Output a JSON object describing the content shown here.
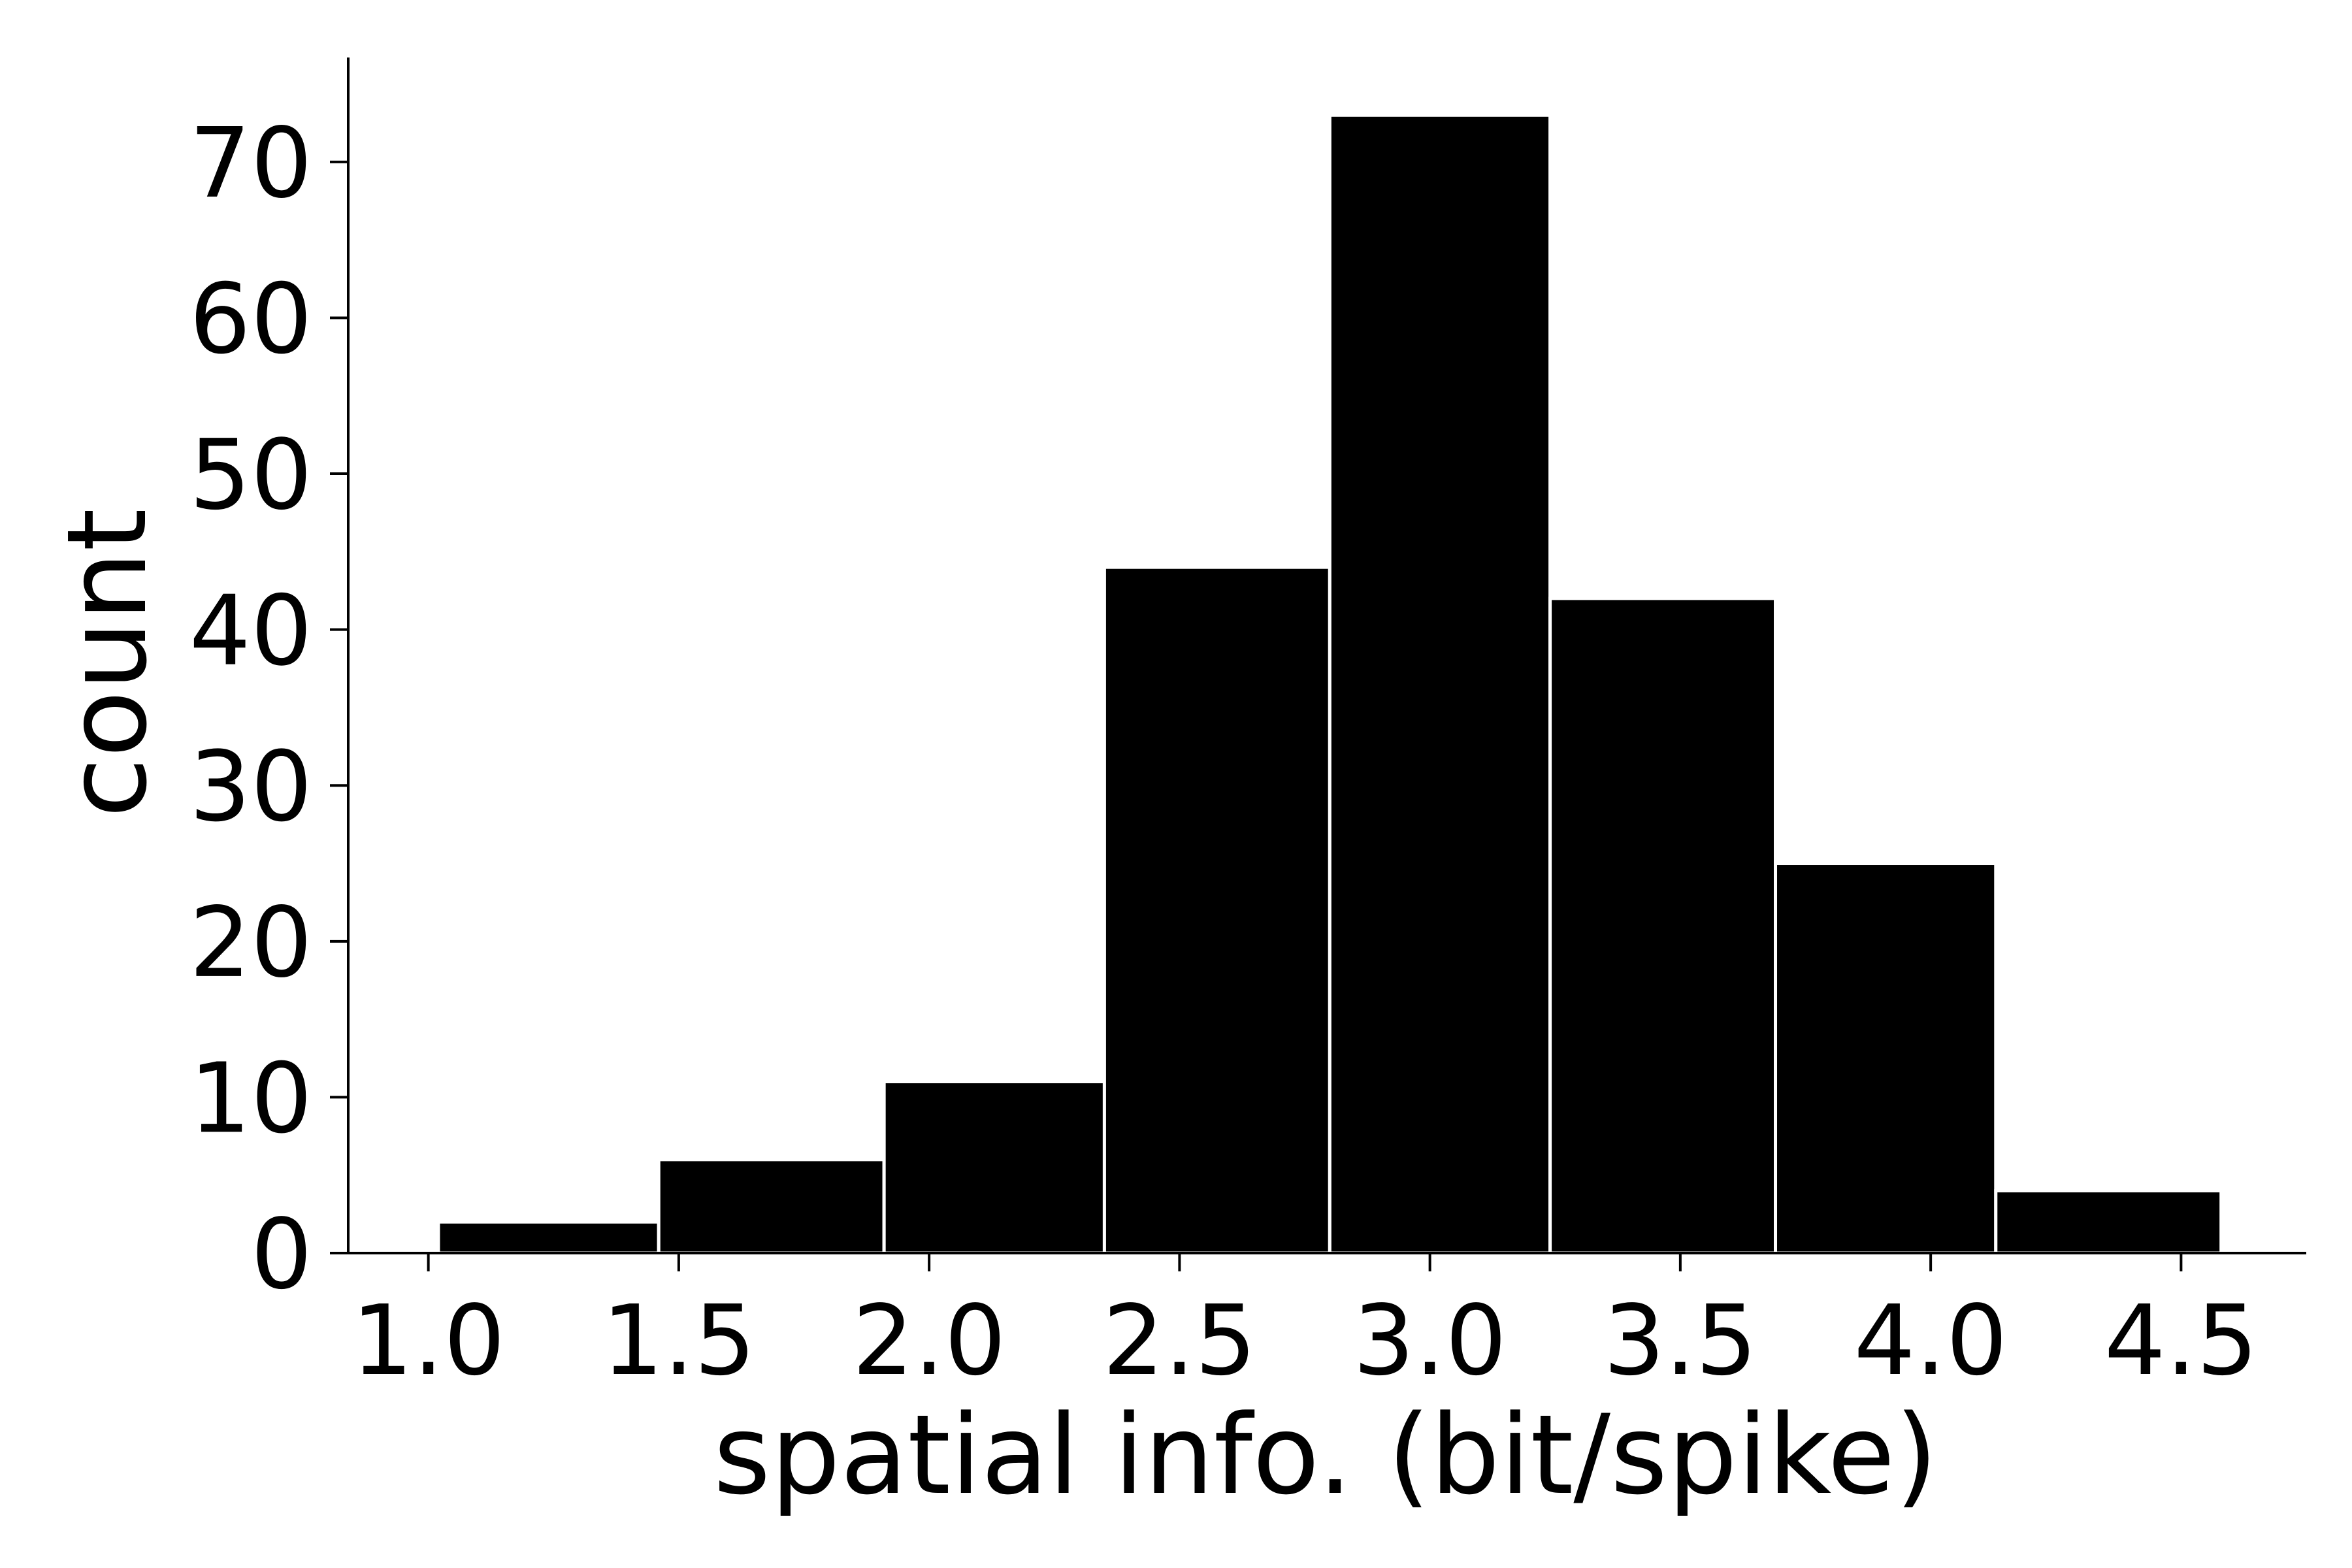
{
  "chart_data": {
    "type": "bar",
    "subtype": "histogram",
    "title": "",
    "xlabel": "spatial info. (bit/spike)",
    "ylabel": "count",
    "bins": [
      {
        "start": 1.02,
        "end": 1.46,
        "count": 2
      },
      {
        "start": 1.46,
        "end": 1.91,
        "count": 6
      },
      {
        "start": 1.91,
        "end": 2.35,
        "count": 11
      },
      {
        "start": 2.35,
        "end": 2.8,
        "count": 44
      },
      {
        "start": 2.8,
        "end": 3.24,
        "count": 73
      },
      {
        "start": 3.24,
        "end": 3.69,
        "count": 42
      },
      {
        "start": 3.69,
        "end": 4.13,
        "count": 25
      },
      {
        "start": 4.13,
        "end": 4.58,
        "count": 4
      }
    ],
    "xlim": [
      0.84,
      4.75
    ],
    "ylim": [
      0,
      76.7
    ],
    "xticks": [
      1.0,
      1.5,
      2.0,
      2.5,
      3.0,
      3.5,
      4.0,
      4.5
    ],
    "xtick_labels": [
      "1.0",
      "1.5",
      "2.0",
      "2.5",
      "3.0",
      "3.5",
      "4.0",
      "4.5"
    ],
    "yticks": [
      0,
      10,
      20,
      30,
      40,
      50,
      60,
      70
    ],
    "ytick_labels": [
      "0",
      "10",
      "20",
      "30",
      "40",
      "50",
      "60",
      "70"
    ],
    "bar_color": "#000000",
    "bar_edge_color": "#ffffff",
    "grid": false,
    "legend": "none"
  }
}
